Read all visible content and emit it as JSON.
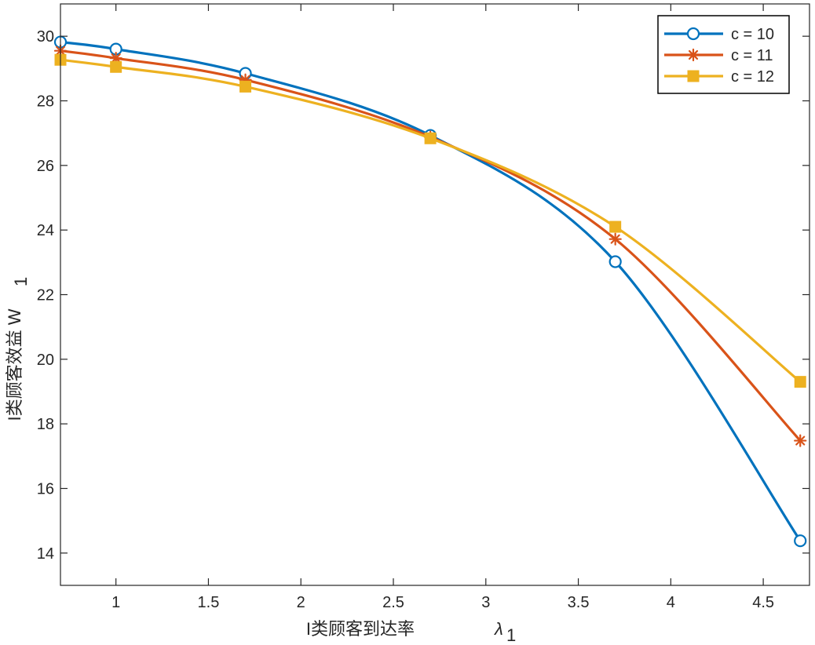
{
  "chart_data": {
    "type": "line",
    "title": "",
    "xlabel": "I类顾客到达率",
    "xlabel_symbol": "λ",
    "xlabel_subscript": "1",
    "ylabel": "I类顾客效益 W",
    "ylabel_subscript": "1",
    "xlim": [
      0.7,
      4.75
    ],
    "ylim": [
      13,
      31
    ],
    "xticks": [
      1,
      1.5,
      2,
      2.5,
      3,
      3.5,
      4,
      4.5
    ],
    "xtick_labels": [
      "1",
      "1.5",
      "2",
      "2.5",
      "3",
      "3.5",
      "4",
      "4.5"
    ],
    "yticks": [
      14,
      16,
      18,
      20,
      22,
      24,
      26,
      28,
      30
    ],
    "ytick_labels": [
      "14",
      "16",
      "18",
      "20",
      "22",
      "24",
      "26",
      "28",
      "30"
    ],
    "grid": false,
    "legend_position": "top-right",
    "x": [
      0.7,
      1.0,
      1.7,
      2.7,
      3.7,
      4.7
    ],
    "series": [
      {
        "name": "c = 10",
        "color": "#0072BD",
        "marker": "circle",
        "values": [
          29.82,
          29.6,
          28.85,
          26.93,
          23.02,
          14.38
        ]
      },
      {
        "name": "c = 11",
        "color": "#D95319",
        "marker": "asterisk",
        "values": [
          29.55,
          29.32,
          28.65,
          26.88,
          23.72,
          17.48
        ]
      },
      {
        "name": "c = 12",
        "color": "#EDB120",
        "marker": "square",
        "values": [
          29.27,
          29.05,
          28.44,
          26.84,
          24.1,
          19.3
        ]
      }
    ]
  }
}
